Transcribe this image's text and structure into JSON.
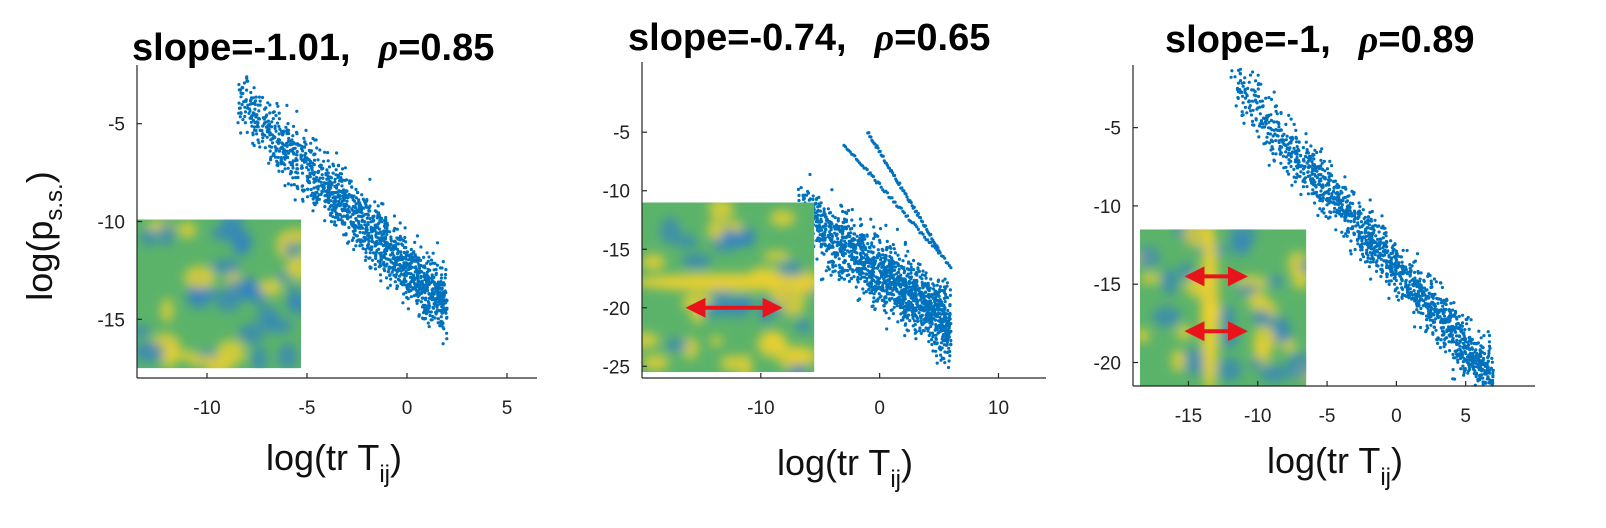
{
  "colors": {
    "points": "#0072BD",
    "axis": "#262626",
    "arrow": "#E8131B",
    "heat_base": "#5BB36A",
    "heat_low": "#2B7BD0",
    "heat_high": "#F2D12C"
  },
  "icons": {
    "inset": "heatmap-image",
    "arrow": "double-headed-arrow"
  },
  "chart_data": [
    {
      "type": "scatter",
      "title": {
        "slope_text": "slope=-1.01,",
        "rho_symbol": "ρ",
        "rho_text": "=0.85"
      },
      "slope": -1.01,
      "rho": 0.85,
      "xlabel": {
        "main": "log(tr T",
        "sub": "ij",
        "close": ")"
      },
      "ylabel": {
        "main": "log(p",
        "sub": "s.s.",
        "close": ")"
      },
      "xlim": [
        -13.5,
        6.5
      ],
      "ylim": [
        -18,
        -2
      ],
      "xticks": [
        -10,
        -5,
        0,
        5
      ],
      "yticks": [
        -5,
        -10,
        -15
      ],
      "cloud": {
        "x_range": [
          -8.5,
          2
        ],
        "center_x": -3,
        "center_y": -9.3,
        "spread": 1.2
      },
      "inset": {
        "x": [
          -13.5,
          -5.3
        ],
        "y": [
          -17.5,
          -9.9
        ],
        "arrows": []
      },
      "grid": false,
      "legend": "none"
    },
    {
      "type": "scatter",
      "title": {
        "slope_text": "slope=-0.74,",
        "rho_symbol": "ρ",
        "rho_text": "=0.65"
      },
      "slope": -0.74,
      "rho": 0.65,
      "xlabel": {
        "main": "log(tr T",
        "sub": "ij",
        "close": ")"
      },
      "ylabel": {
        "main": "",
        "sub": "",
        "close": ""
      },
      "xlim": [
        -20,
        14
      ],
      "ylim": [
        -26,
        1
      ],
      "xticks": [
        -10,
        0,
        10
      ],
      "yticks": [
        -5,
        -10,
        -15,
        -20,
        -25
      ],
      "cloud": {
        "x_range": [
          -7,
          6
        ],
        "center_x": 0,
        "center_y": -17,
        "spread": 2.1
      },
      "inset": {
        "x": [
          -20,
          -5.5
        ],
        "y": [
          -25.5,
          -11
        ],
        "arrows": [
          {
            "y": -20,
            "x": [
              -16,
              -8.5
            ]
          }
        ]
      },
      "grid": false,
      "legend": "none"
    },
    {
      "type": "scatter",
      "title": {
        "slope_text": "slope=-1,",
        "rho_symbol": "ρ",
        "rho_text": "=0.89"
      },
      "slope": -1.0,
      "rho": 0.89,
      "xlabel": {
        "main": "log(tr T",
        "sub": "ij",
        "close": ")"
      },
      "ylabel": {
        "main": "",
        "sub": "",
        "close": ""
      },
      "xlim": [
        -19,
        10
      ],
      "ylim": [
        -21.5,
        -1
      ],
      "xticks": [
        -15,
        -10,
        -5,
        0,
        5
      ],
      "yticks": [
        -5,
        -10,
        -15,
        -20
      ],
      "cloud": {
        "x_range": [
          -12,
          7
        ],
        "center_x": -2,
        "center_y": -12,
        "spread": 1.3
      },
      "inset": {
        "x": [
          -18.5,
          -6.5
        ],
        "y": [
          -21.5,
          -11.5
        ],
        "arrows": [
          {
            "y": -14.5,
            "x": [
              -15,
              -11
            ]
          },
          {
            "y": -18,
            "x": [
              -15,
              -11
            ]
          }
        ]
      },
      "grid": false,
      "legend": "none"
    }
  ]
}
